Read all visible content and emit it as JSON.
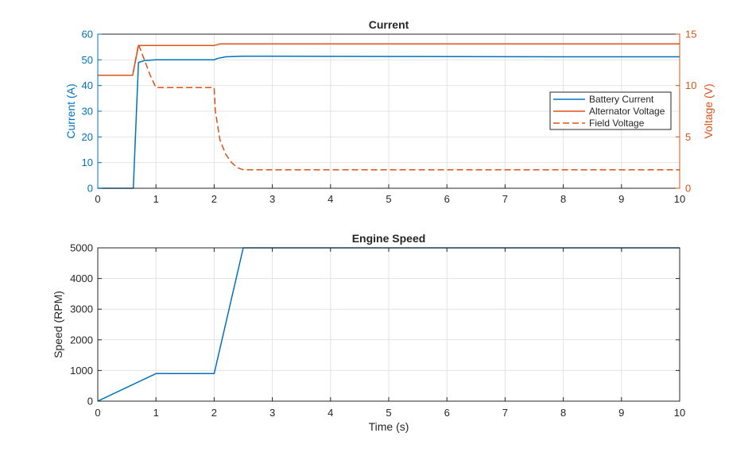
{
  "chart_data": [
    {
      "type": "line",
      "title": "Current",
      "xlabel": "",
      "ylabel_left": "Current (A)",
      "ylabel_right": "Voltage (V)",
      "xlim": [
        0,
        10
      ],
      "ylim_left": [
        0,
        60
      ],
      "ylim_right": [
        0,
        15
      ],
      "xticks": [
        0,
        1,
        2,
        3,
        4,
        5,
        6,
        7,
        8,
        9,
        10
      ],
      "yticks_left": [
        0,
        10,
        20,
        30,
        40,
        50,
        60
      ],
      "yticks_right": [
        0,
        5,
        10,
        15
      ],
      "grid": true,
      "legend_position": "right",
      "colors": {
        "blue": "#0072bd",
        "orange": "#d95319"
      },
      "series": [
        {
          "name": "Battery Current",
          "axis": "left",
          "style": "solid",
          "color": "#0072bd",
          "x": [
            0,
            0.6,
            0.61,
            0.7,
            0.8,
            1.0,
            1.5,
            2.0,
            2.05,
            2.2,
            2.5,
            3.0,
            5.0,
            8.0,
            10.0
          ],
          "y": [
            0,
            0,
            0,
            49,
            49.7,
            50,
            50,
            50,
            50.5,
            51.2,
            51.4,
            51.4,
            51.3,
            51.2,
            51.2
          ]
        },
        {
          "name": "Alternator Voltage",
          "axis": "right",
          "style": "solid",
          "color": "#d95319",
          "x": [
            0,
            0.6,
            0.7,
            0.8,
            1.0,
            2.0,
            2.1,
            2.5,
            3.0,
            10.0
          ],
          "y": [
            11,
            11,
            13.9,
            13.9,
            13.9,
            13.9,
            14.05,
            14.05,
            14.05,
            14.05
          ]
        },
        {
          "name": "Field Voltage",
          "axis": "right",
          "style": "dashed",
          "color": "#d95319",
          "x": [
            0,
            0.6,
            0.7,
            0.8,
            0.9,
            1.0,
            1.5,
            2.0,
            2.02,
            2.1,
            2.2,
            2.3,
            2.4,
            2.5,
            2.6,
            3.0,
            10.0
          ],
          "y": [
            11,
            11,
            14,
            12.5,
            11,
            9.8,
            9.8,
            9.8,
            7.5,
            4.7,
            3.3,
            2.5,
            2.0,
            1.8,
            1.8,
            1.8,
            1.8
          ]
        }
      ]
    },
    {
      "type": "line",
      "title": "Engine Speed",
      "xlabel": "Time (s)",
      "ylabel": "Speed (RPM)",
      "xlim": [
        0,
        10
      ],
      "ylim": [
        0,
        5000
      ],
      "xticks": [
        0,
        1,
        2,
        3,
        4,
        5,
        6,
        7,
        8,
        9,
        10
      ],
      "yticks": [
        0,
        1000,
        2000,
        3000,
        4000,
        5000
      ],
      "grid": true,
      "series": [
        {
          "name": "",
          "color": "#0072bd",
          "style": "solid",
          "x": [
            0,
            1.0,
            2.0,
            2.5,
            10.0
          ],
          "y": [
            0,
            900,
            900,
            5000,
            5000
          ]
        }
      ]
    }
  ]
}
